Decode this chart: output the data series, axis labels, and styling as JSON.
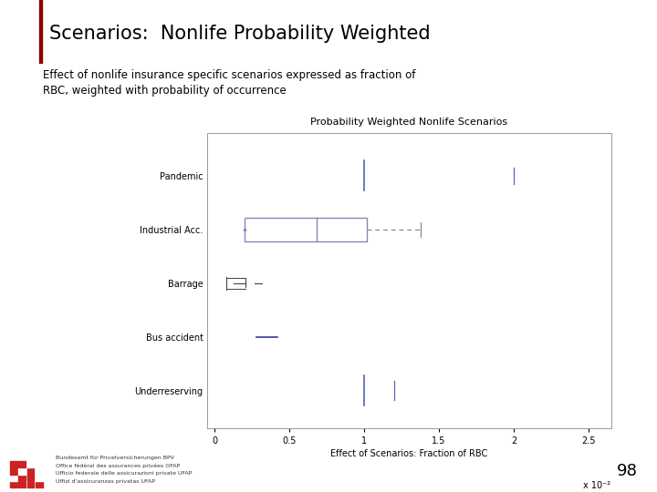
{
  "title": "Scenarios:  Nonlife Probability Weighted",
  "subtitle": "Effect of nonlife insurance specific scenarios expressed as fraction of\nRBC, weighted with probability of occurrence",
  "chart_title": "Probability Weighted Nonlife Scenarios",
  "xlabel": "Effect of Scenarios: Fraction of RBC",
  "xlabel_scale": "x 10⁻²",
  "categories": [
    "Pandemic",
    "Industrial Acc.",
    "Barrage",
    "Bus accident",
    "Underreserving"
  ],
  "xlim": [
    -0.05,
    2.65
  ],
  "xticks": [
    0,
    0.5,
    1.0,
    1.5,
    2.0,
    2.5
  ],
  "xticklabels": [
    "0",
    "0.5",
    "1",
    "1.5",
    "2",
    "2.5"
  ],
  "page_number": "98",
  "bg_color": "#ffffff",
  "header_line_color": "#8b0000",
  "box_color": "#8888bb",
  "dashed_color": "#888888",
  "line_color": "#333333",
  "title_color": "#000000",
  "subtitle_color": "#000000",
  "footer_texts": [
    "Bundesamt für Privatversicherungen BPV",
    "Office fédéral des assurances privées OFAP",
    "Ufficio federale delle assicurazioni private UFAP",
    "Uffizi d'assicuranzas privatas UFAP"
  ]
}
